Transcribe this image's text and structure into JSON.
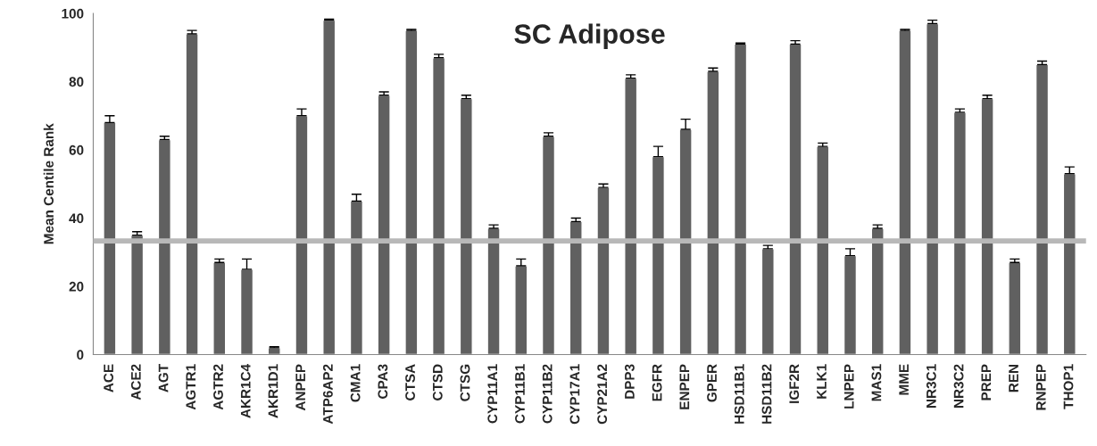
{
  "chart_data": {
    "type": "bar",
    "title": "SC Adipose",
    "ylabel": "Mean Centile Rank",
    "categories": [
      "ACE",
      "ACE2",
      "AGT",
      "AGTR1",
      "AGTR2",
      "AKR1C4",
      "AKR1D1",
      "ANPEP",
      "ATP6AP2",
      "CMA1",
      "CPA3",
      "CTSA",
      "CTSD",
      "CTSG",
      "CYP11A1",
      "CYP11B1",
      "CYP11B2",
      "CYP17A1",
      "CYP21A2",
      "DPP3",
      "EGFR",
      "ENPEP",
      "GPER",
      "HSD11B1",
      "HSD11B2",
      "IGF2R",
      "KLK1",
      "LNPEP",
      "MAS1",
      "MME",
      "NR3C1",
      "NR3C2",
      "PREP",
      "REN",
      "RNPEP",
      "THOP1"
    ],
    "values": [
      68,
      35,
      63,
      94,
      27,
      25,
      2,
      70,
      98,
      45,
      76,
      95,
      87,
      75,
      37,
      26,
      64,
      39,
      49,
      81,
      58,
      66,
      83,
      91,
      31,
      91,
      61,
      29,
      37,
      95,
      97,
      71,
      75,
      27,
      85,
      53
    ],
    "errors": [
      [
        68,
        70
      ],
      [
        35,
        36
      ],
      [
        63,
        64
      ],
      [
        94,
        95
      ],
      [
        27,
        28
      ],
      [
        25,
        28
      ],
      [
        2,
        2.3
      ],
      [
        70,
        72
      ],
      [
        98,
        98.3
      ],
      [
        45,
        47
      ],
      [
        76,
        77
      ],
      [
        95,
        95.3
      ],
      [
        87,
        88
      ],
      [
        75,
        76
      ],
      [
        37,
        38
      ],
      [
        26,
        28
      ],
      [
        64,
        65
      ],
      [
        39,
        40
      ],
      [
        49,
        50
      ],
      [
        81,
        82
      ],
      [
        58,
        61
      ],
      [
        66,
        69
      ],
      [
        83,
        84
      ],
      [
        91,
        91.3
      ],
      [
        31,
        32
      ],
      [
        91,
        92
      ],
      [
        61,
        62
      ],
      [
        29,
        31
      ],
      [
        37,
        38
      ],
      [
        95,
        95.3
      ],
      [
        97,
        98
      ],
      [
        71,
        72
      ],
      [
        75,
        76
      ],
      [
        27,
        28
      ],
      [
        85,
        86
      ],
      [
        53,
        55
      ]
    ],
    "color": "#606060",
    "ylim": [
      0,
      100
    ],
    "yticks": [
      0,
      20,
      40,
      60,
      80,
      100
    ],
    "grid": false,
    "ref_lines": [
      {
        "axis": "y",
        "value": 33.3,
        "color": "#b8b8b8"
      }
    ]
  }
}
